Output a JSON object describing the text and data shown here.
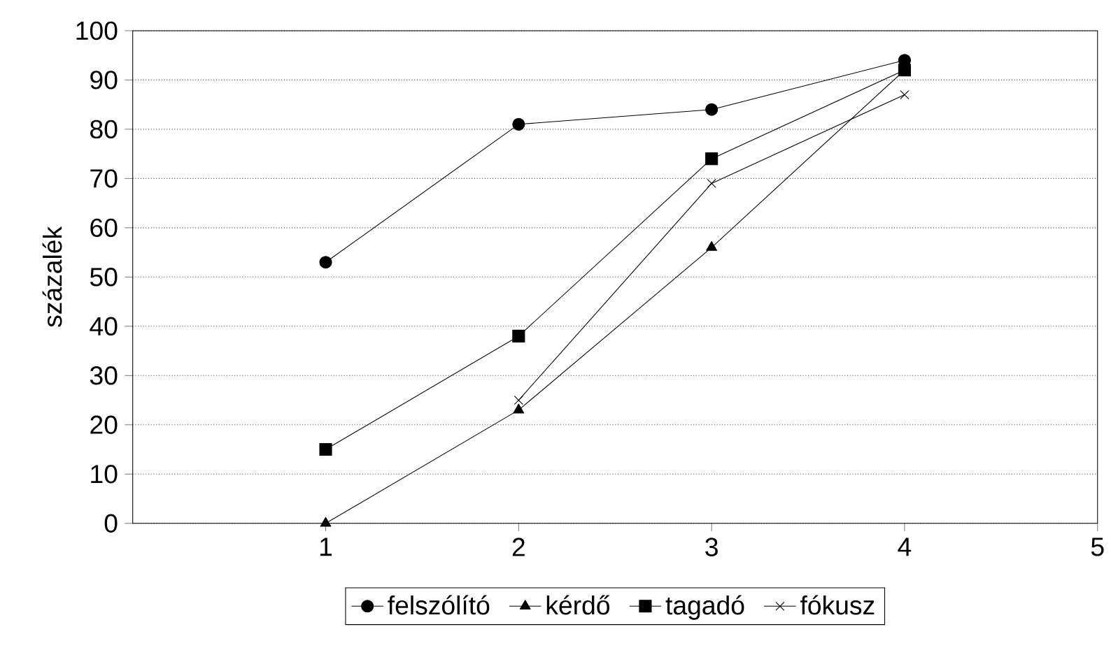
{
  "chart_data": {
    "type": "line",
    "ylabel": "százalék",
    "x": [
      1,
      2,
      3,
      4
    ],
    "xlim": [
      0,
      5
    ],
    "xticks": [
      1,
      2,
      3,
      4,
      5
    ],
    "ylim": [
      0,
      100
    ],
    "yticks": [
      0,
      10,
      20,
      30,
      40,
      50,
      60,
      70,
      80,
      90,
      100
    ],
    "grid": "y",
    "legend": "bottom",
    "line_style": "solid",
    "series": [
      {
        "name": "felszólító",
        "color": "#000000",
        "marker": "circle",
        "values": [
          53,
          81,
          84,
          94
        ]
      },
      {
        "name": "kérdő",
        "color": "#000000",
        "marker": "triangle",
        "values": [
          0,
          23,
          56,
          92
        ]
      },
      {
        "name": "tagadó",
        "color": "#000000",
        "marker": "square",
        "values": [
          15,
          38,
          74,
          92
        ]
      },
      {
        "name": "fókusz",
        "color": "#000000",
        "marker": "cross",
        "values": [
          null,
          25,
          69,
          87
        ]
      }
    ]
  }
}
